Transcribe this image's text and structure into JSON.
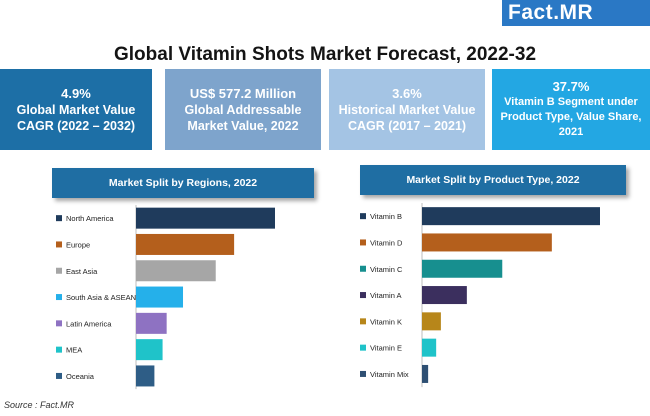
{
  "brand": {
    "name_prefix": "Fact",
    "name_suffix": ".MR"
  },
  "title": "Global Vitamin Shots Market Forecast, 2022-32",
  "kpis": [
    {
      "value": "4.9%",
      "text": "Global Market Value CAGR (2022 – 2032)",
      "color": "#1d6fa6"
    },
    {
      "value": "US$ 577.2 Million",
      "text": "Global Addressable Market Value, 2022",
      "color": "#7ea4cc"
    },
    {
      "value": "3.6%",
      "text": "Historical Market Value CAGR (2017 – 2021)",
      "color": "#a4c4e4"
    },
    {
      "value": "37.7%",
      "text": "Vitamin B Segment under Product Type, Value Share, 2021",
      "color": "#23a7e3"
    }
  ],
  "source": "Source : Fact.MR",
  "chart_data": [
    {
      "type": "bar",
      "orientation": "horizontal",
      "title": "Market Split by Regions, 2022",
      "categories": [
        "North America",
        "Europe",
        "East Asia",
        "South Asia & ASEAN",
        "Latin America",
        "MEA",
        "Oceania"
      ],
      "values": [
        34,
        24,
        19.5,
        11.5,
        7.5,
        6.5,
        4.5
      ],
      "colors": [
        "#1f3b5c",
        "#b45f1c",
        "#a6a6a6",
        "#25b0ea",
        "#8e72c2",
        "#1fc3c9",
        "#2e5d86"
      ],
      "grid": false,
      "legend": "none"
    },
    {
      "type": "bar",
      "orientation": "horizontal",
      "title": "Market Split by Product Type, 2022",
      "categories": [
        "Vitamin B",
        "Vitamin D",
        "Vitamin C",
        "Vitamin A",
        "Vitamin K",
        "Vitamin E",
        "Vitamin Mix"
      ],
      "values": [
        37.7,
        27.5,
        17,
        9.5,
        4,
        3,
        1.3
      ],
      "colors": [
        "#1f3b5c",
        "#b45f1c",
        "#178f8f",
        "#3b2f5e",
        "#b7861a",
        "#1fc3c9",
        "#2e4f73"
      ],
      "grid": false,
      "legend": "none"
    }
  ]
}
